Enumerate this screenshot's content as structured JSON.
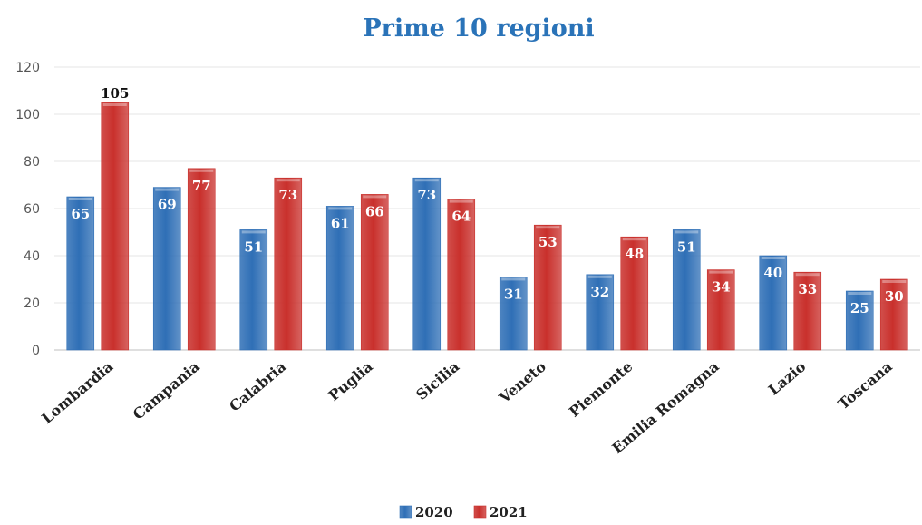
{
  "chart_data": {
    "type": "bar",
    "title": "Prime 10 regioni",
    "categories": [
      "Lombardia",
      "Campania",
      "Calabria",
      "Puglia",
      "Sicilia",
      "Veneto",
      "Piemonte",
      "Emilia Romagna",
      "Lazio",
      "Toscana"
    ],
    "series": [
      {
        "name": "2020",
        "color": "#2f6fb6",
        "values": [
          65,
          69,
          51,
          61,
          73,
          31,
          32,
          51,
          40,
          25
        ]
      },
      {
        "name": "2021",
        "color": "#c9302c",
        "values": [
          105,
          77,
          73,
          66,
          64,
          53,
          48,
          34,
          33,
          30
        ]
      }
    ],
    "yticks": [
      "0",
      "20",
      "40",
      "60",
      "80",
      "100",
      "120"
    ],
    "ylim": [
      0,
      120
    ],
    "grid": true,
    "legend_position": "bottom"
  }
}
